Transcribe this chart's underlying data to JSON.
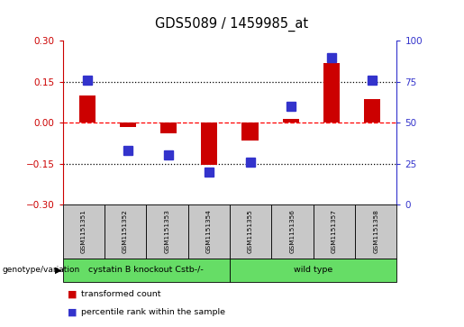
{
  "title": "GDS5089 / 1459985_at",
  "samples": [
    "GSM1151351",
    "GSM1151352",
    "GSM1151353",
    "GSM1151354",
    "GSM1151355",
    "GSM1151356",
    "GSM1151357",
    "GSM1151358"
  ],
  "red_values": [
    0.1,
    -0.015,
    -0.04,
    -0.155,
    -0.065,
    0.015,
    0.22,
    0.085
  ],
  "blue_values": [
    76,
    33,
    30,
    20,
    26,
    60,
    90,
    76
  ],
  "group1_label": "cystatin B knockout Cstb-/-",
  "group2_label": "wild type",
  "genotype_label": "genotype/variation",
  "legend_red": "transformed count",
  "legend_blue": "percentile rank within the sample",
  "ylim_left": [
    -0.3,
    0.3
  ],
  "ylim_right": [
    0,
    100
  ],
  "yticks_left": [
    -0.3,
    -0.15,
    0.0,
    0.15,
    0.3
  ],
  "yticks_right": [
    0,
    25,
    50,
    75,
    100
  ],
  "hlines_y": [
    0.15,
    0.0,
    -0.15
  ],
  "hline_colors": [
    "black",
    "red",
    "black"
  ],
  "hline_styles": [
    "dotted",
    "dashed",
    "dotted"
  ],
  "red_color": "#CC0000",
  "blue_color": "#3333CC",
  "green_color": "#66DD66",
  "gray_color": "#C8C8C8",
  "red_bar_width": 0.4,
  "blue_marker_size": 7
}
